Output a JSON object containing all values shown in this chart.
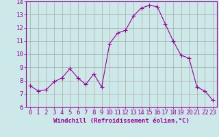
{
  "x": [
    0,
    1,
    2,
    3,
    4,
    5,
    6,
    7,
    8,
    9,
    10,
    11,
    12,
    13,
    14,
    15,
    16,
    17,
    18,
    19,
    20,
    21,
    22,
    23
  ],
  "y": [
    7.6,
    7.2,
    7.3,
    7.9,
    8.2,
    8.9,
    8.2,
    7.7,
    8.5,
    7.5,
    10.8,
    11.6,
    11.8,
    12.9,
    13.5,
    13.7,
    13.6,
    12.3,
    11.0,
    9.9,
    9.7,
    7.5,
    7.2,
    6.5
  ],
  "line_color": "#990099",
  "marker": "+",
  "marker_size": 4,
  "bg_color": "#cce8e8",
  "grid_color": "#aaaaaa",
  "xlabel": "Windchill (Refroidissement éolien,°C)",
  "xlim": [
    -0.5,
    23.5
  ],
  "ylim": [
    6,
    14
  ],
  "yticks": [
    6,
    7,
    8,
    9,
    10,
    11,
    12,
    13,
    14
  ],
  "xticks": [
    0,
    1,
    2,
    3,
    4,
    5,
    6,
    7,
    8,
    9,
    10,
    11,
    12,
    13,
    14,
    15,
    16,
    17,
    18,
    19,
    20,
    21,
    22,
    23
  ],
  "xlabel_fontsize": 6.5,
  "tick_fontsize": 6.5,
  "axis_label_color": "#990099",
  "tick_color": "#990099",
  "spine_color": "#990099",
  "line_width": 0.8
}
